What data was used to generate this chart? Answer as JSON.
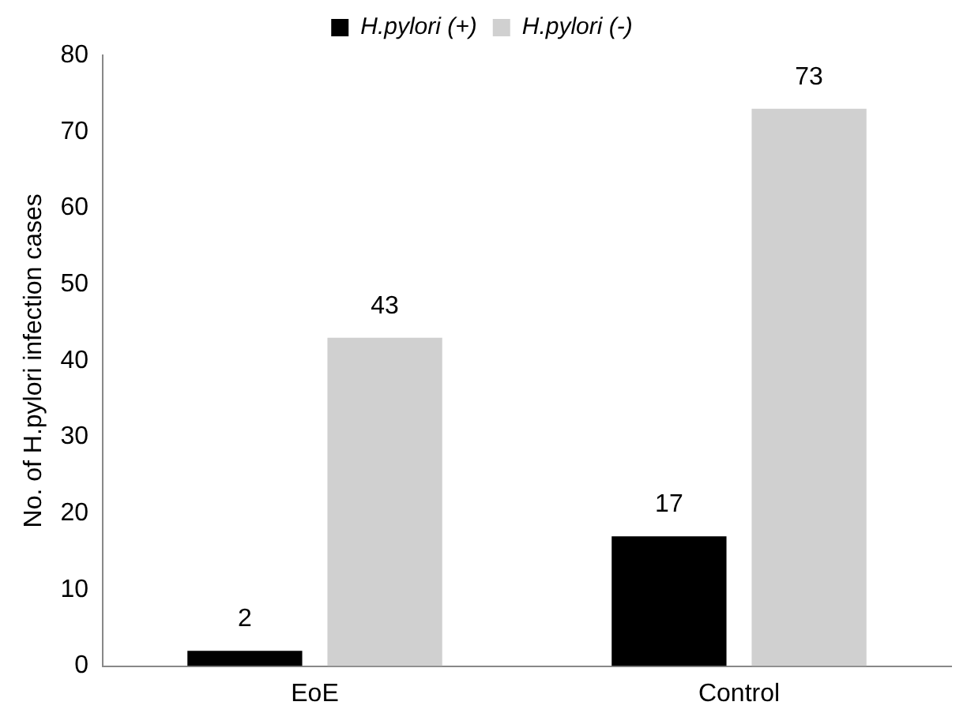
{
  "chart_data": {
    "type": "bar",
    "ylabel": "No. of H.pylori infection cases",
    "categories": [
      "EoE",
      "Control"
    ],
    "series": [
      {
        "name": "H.pylori (+)",
        "color": "#000000",
        "values": [
          2,
          17
        ]
      },
      {
        "name": "H.pylori (-)",
        "color": "#d0d0d0",
        "values": [
          43,
          73
        ]
      }
    ],
    "ylim": [
      0,
      80
    ],
    "yticks": [
      0,
      10,
      20,
      30,
      40,
      50,
      60,
      70,
      80
    ],
    "grid": false,
    "legend": "top",
    "data_labels": true
  }
}
